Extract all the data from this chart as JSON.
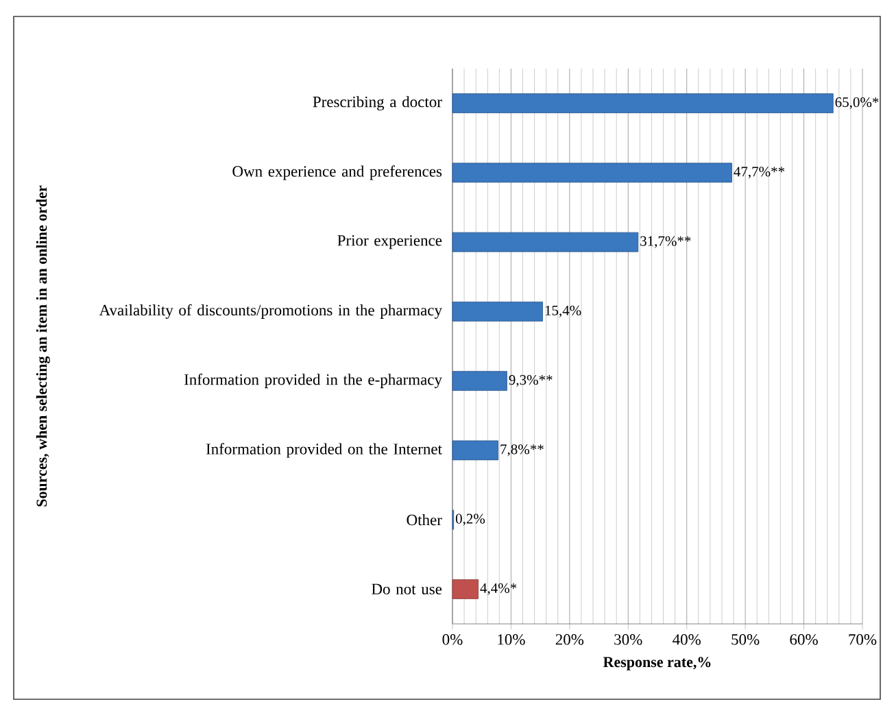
{
  "chart_data": {
    "type": "bar",
    "orientation": "horizontal",
    "xlabel": "Response rate,%",
    "ylabel": "Sources, when selecting an item in an online order",
    "categories": [
      "Prescribing a doctor",
      "Own experience and preferences",
      "Prior experience",
      "Availability of discounts/promotions in the pharmacy",
      "Information provided in the e-pharmacy",
      "Information provided on the Internet",
      "Other",
      "Do not use"
    ],
    "values": [
      65.0,
      47.7,
      31.7,
      15.4,
      9.3,
      7.8,
      0.2,
      4.4
    ],
    "colors": [
      "#3a78c0",
      "#3a78c0",
      "#3a78c0",
      "#3a78c0",
      "#3a78c0",
      "#3a78c0",
      "#3a78c0",
      "#c0504d"
    ],
    "value_labels": [
      "65,0%*",
      "47,7%**",
      "31,7%**",
      "15,4%",
      "9,3%**",
      "7,8%**",
      "0,2%",
      "4,4%*"
    ],
    "xlim": [
      0,
      70
    ],
    "xticks": [
      {
        "value": 0,
        "label": "0%"
      },
      {
        "value": 10,
        "label": "10%"
      },
      {
        "value": 20,
        "label": "20%"
      },
      {
        "value": 30,
        "label": "30%"
      },
      {
        "value": 40,
        "label": "40%"
      },
      {
        "value": 50,
        "label": "50%"
      },
      {
        "value": 60,
        "label": "60%"
      },
      {
        "value": 70,
        "label": "70%"
      }
    ],
    "grid": "x"
  }
}
